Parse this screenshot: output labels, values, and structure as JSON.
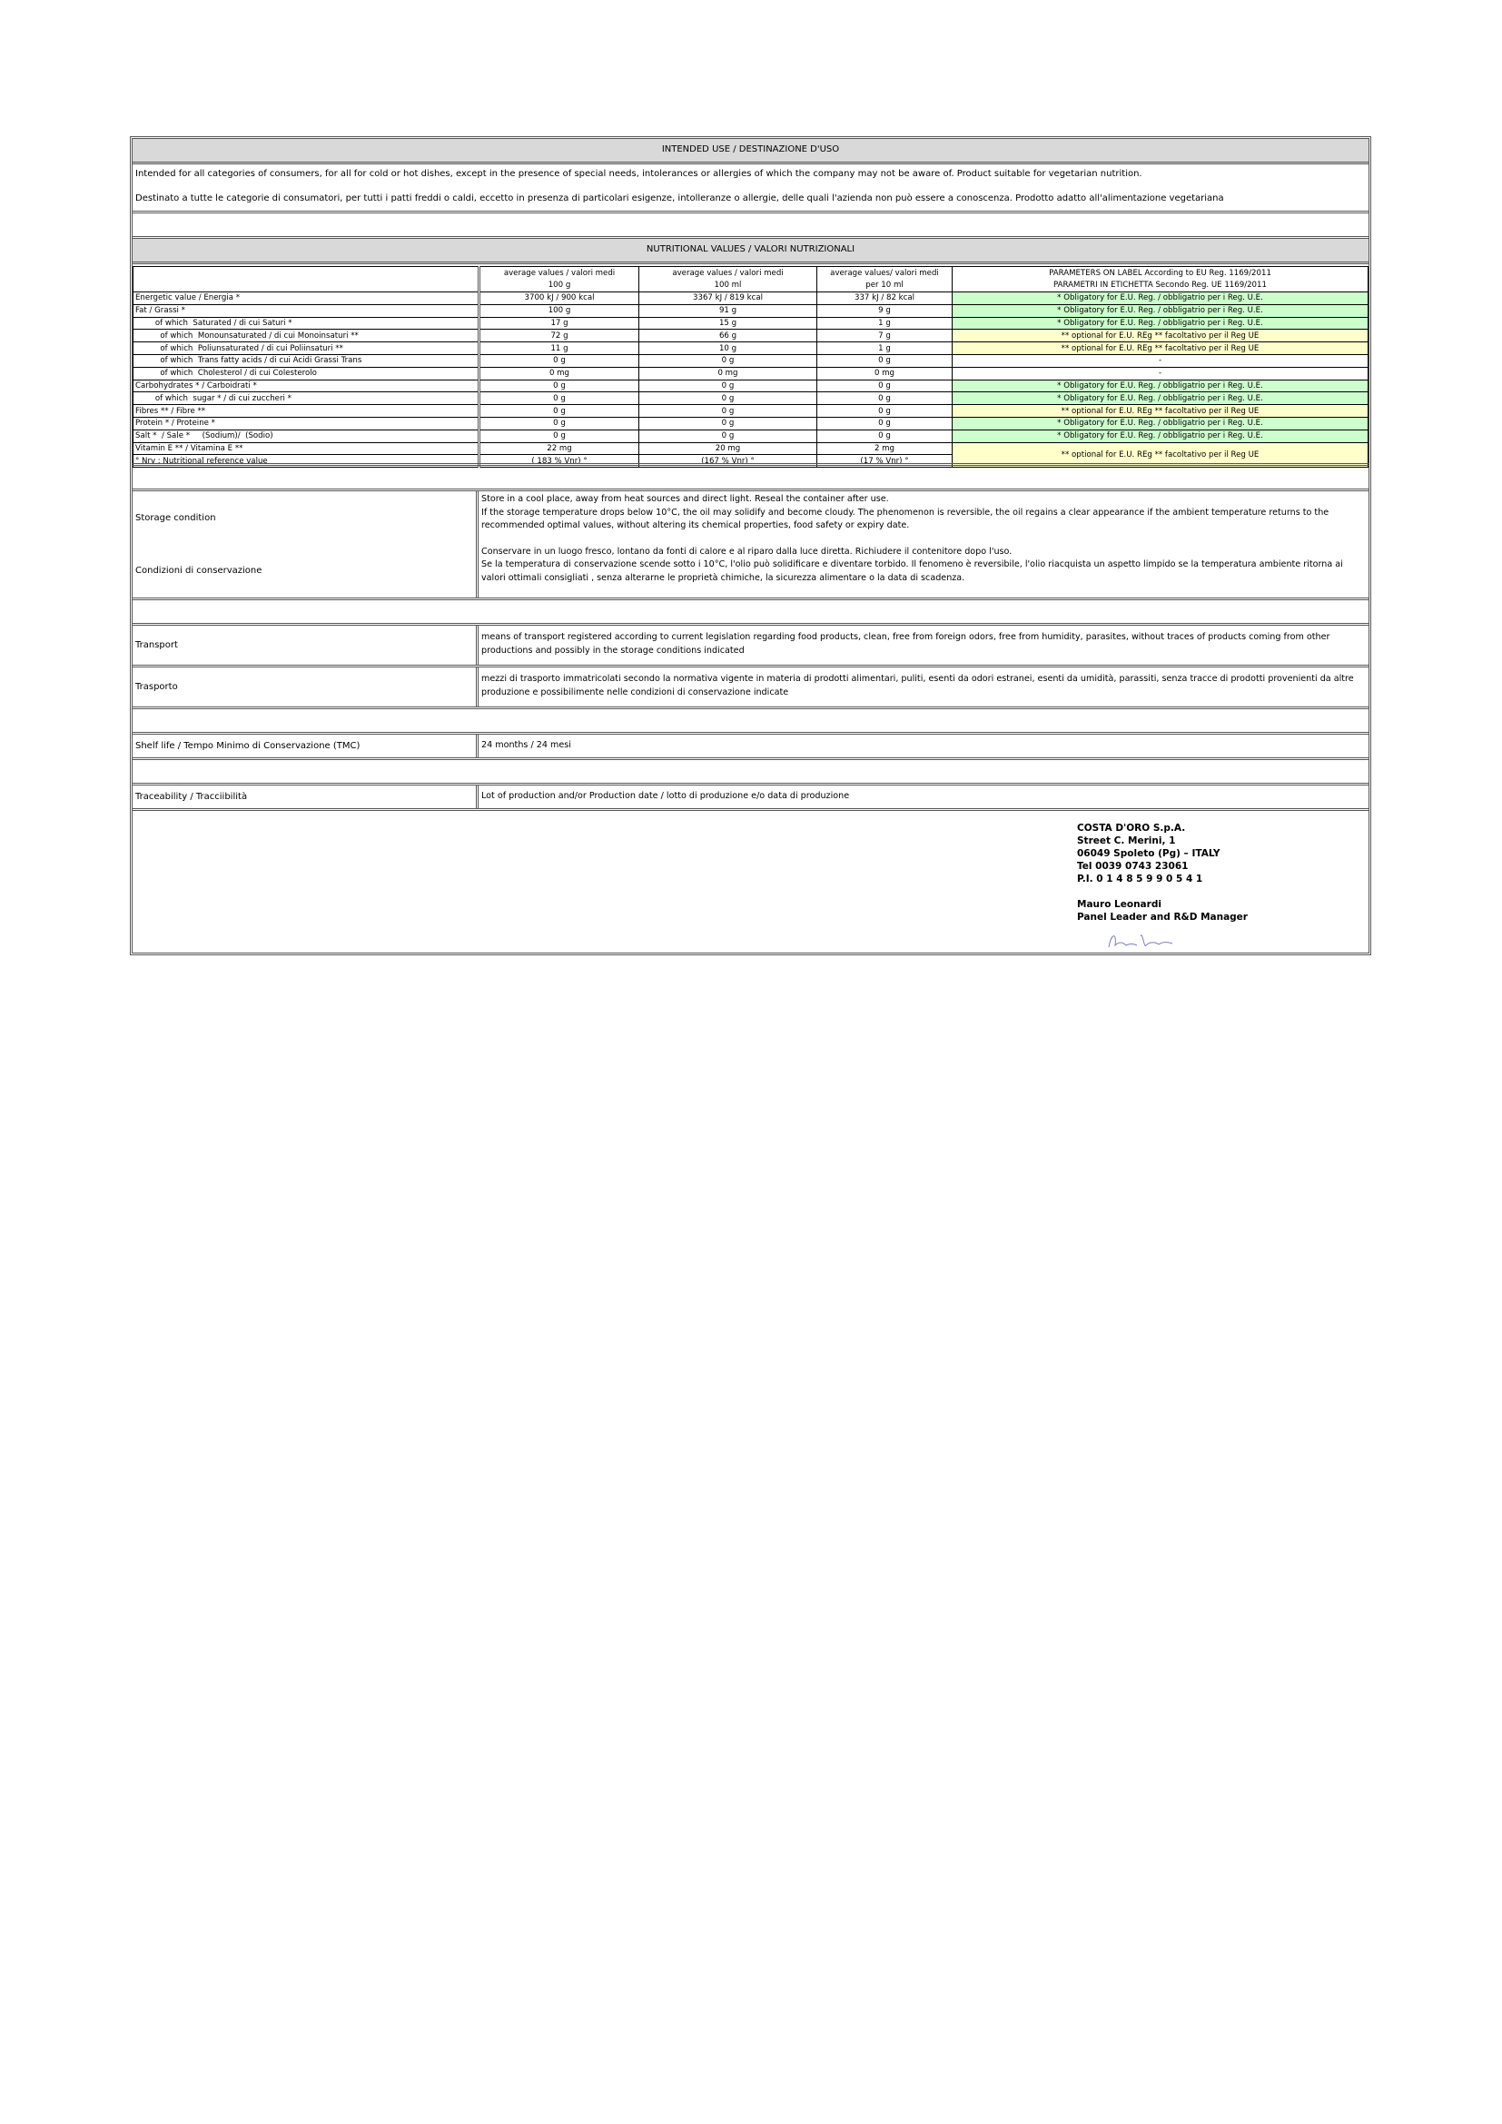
{
  "intended_use": {
    "title": "INTENDED USE / DESTINAZIONE D'USO",
    "text_en": "Intended for all categories of consumers, for all for cold or hot dishes,  except in the presence of special needs, intolerances or allergies of which the company may not be aware of. Product suitable for vegetarian nutrition.",
    "text_it": "Destinato a tutte le categorie di consumatori, per tutti i patti freddi o caldi, eccetto in presenza di particolari esigenze,  intolleranze o allergie,  delle quali l'azienda non può essere a conoscenza. Prodotto adatto all'alimentazione vegetariana"
  },
  "nutrition": {
    "title": "NUTRITIONAL VALUES  / VALORI NUTRIZIONALI",
    "headers": [
      {
        "l1": "average values / valori medi",
        "l2": "100 g"
      },
      {
        "l1": "average values / valori medi",
        "l2": "100 ml"
      },
      {
        "l1": "average values/ valori medi",
        "l2": "per 10 ml"
      },
      {
        "l1": "PARAMETERS ON LABEL According to EU Reg. 1169/2011",
        "l2": "PARAMETRI  IN ETICHETTA Secondo Reg. UE 1169/2011"
      }
    ],
    "rows": [
      {
        "label": "Energetic value / Energia *",
        "v1": "3700 kJ / 900 kcal",
        "v2": "3367 kJ / 819 kcal",
        "v3": "337 kJ / 82 kcal",
        "param": "* Obligatory for E.U. Reg. / obbligatrio per i Reg. U.E.",
        "type": "g"
      },
      {
        "label": "Fat / Grassi *",
        "v1": "100 g",
        "v2": "91 g",
        "v3": "9 g",
        "param": "* Obligatory for E.U. Reg. / obbligatrio per i Reg. U.E.",
        "type": "g"
      },
      {
        "label": "        of which  Saturated / di cui Saturi *",
        "v1": "17 g",
        "v2": "15 g",
        "v3": "1 g",
        "param": "* Obligatory for E.U. Reg. / obbligatrio per i Reg. U.E.",
        "type": "g"
      },
      {
        "label": "          of which  Monounsaturated / di cui Monoinsaturi **",
        "v1": "72 g",
        "v2": "66 g",
        "v3": "7 g",
        "param": "** optional for E.U. REg  ** facoltativo per il Reg UE",
        "type": "y"
      },
      {
        "label": "          of which  Poliunsaturated / di cui Poliinsaturi **",
        "v1": "11 g",
        "v2": "10 g",
        "v3": "1 g",
        "param": "** optional for E.U. REg  ** facoltativo per il Reg UE",
        "type": "y"
      },
      {
        "label": "          of which  Trans fatty acids / di cui Acidi Grassi Trans",
        "v1": "0 g",
        "v2": "0 g",
        "v3": "0 g",
        "param": "-",
        "type": "w"
      },
      {
        "label": "          of which  Cholesterol / di cui Colesterolo",
        "v1": "0 mg",
        "v2": "0 mg",
        "v3": "0 mg",
        "param": "-",
        "type": "w"
      },
      {
        "label": "Carbohydrates * / Carboidrati *",
        "v1": "0 g",
        "v2": "0 g",
        "v3": "0 g",
        "param": "* Obligatory for E.U. Reg. / obbligatrio per i Reg. U.E.",
        "type": "g"
      },
      {
        "label": "        of which  sugar * / di cui zuccheri *",
        "v1": "0 g",
        "v2": "0 g",
        "v3": "0 g",
        "param": "* Obligatory for E.U. Reg. / obbligatrio per i Reg. U.E.",
        "type": "g"
      },
      {
        "label": "Fibres ** / Fibre **",
        "v1": "0 g",
        "v2": "0 g",
        "v3": "0 g",
        "param": "** optional for E.U. REg  ** facoltativo per il Reg UE",
        "type": "y"
      },
      {
        "label": "Protein * / Proteine *",
        "v1": "0 g",
        "v2": "0 g",
        "v3": "0 g",
        "param": "* Obligatory for E.U. Reg. / obbligatrio per i Reg. U.E.",
        "type": "g"
      },
      {
        "label": "Salt *  / Sale *     (Sodium)/  (Sodio)",
        "v1": "0 g",
        "v2": "0 g",
        "v3": "0 g",
        "param": "* Obligatory for E.U. Reg. / obbligatrio per i Reg. U.E.",
        "type": "g"
      }
    ],
    "vitamin": {
      "label": "Vitamin E ** / Vitamina E **",
      "v1": "22 mg",
      "v2": "20 mg",
      "v3": "2 mg",
      "param": "** optional for E.U. REg  ** facoltativo per il Reg UE"
    },
    "nrv": {
      "label": "° Nrv : Nutritional reference value",
      "v1": "( 183 % Vnr) °",
      "v2": "(167 % Vnr) °",
      "v3": "(17 % Vnr) °"
    },
    "colors": {
      "obligatory": "#ccffcc",
      "optional": "#ffffcc",
      "header": "#d9d9d9"
    }
  },
  "storage": {
    "label_en": "Storage condition",
    "label_it": "Condizioni di conservazione",
    "en1": "Store in a cool place, away from heat sources and direct light. Reseal the container after use.",
    "en2": "If the storage temperature drops below 10°C, the oil may solidify and become cloudy. The phenomenon is reversible, the oil regains a clear appearance if the ambient temperature returns to the recommended optimal values, without altering its chemical properties, food safety or expiry date.",
    "it1": "Conservare in un luogo fresco, lontano da fonti di calore e al riparo dalla luce diretta. Richiudere il contenitore dopo l'uso.",
    "it2": "Se la temperatura di conservazione scende sotto i 10°C, l'olio può solidificare e diventare torbido. Il fenomeno è reversibile, l'olio riacquista un aspetto limpido se la temperatura ambiente ritorna ai valori ottimali consigliati , senza alterarne le proprietà chimiche, la sicurezza alimentare o la data di scadenza."
  },
  "transport": {
    "label_en": "Transport",
    "text_en": "means of transport registered according to current legislation regarding food products, clean, free from foreign odors, free from humidity, parasites, without traces of products coming from other productions and possibly in the storage conditions indicated",
    "label_it": "Trasporto",
    "text_it": "mezzi di trasporto immatricolati secondo la normativa vigente in materia di prodotti alimentari, puliti, esenti da odori estranei, esenti da umidità, parassiti, senza tracce di prodotti provenienti da altre produzione e possibilimente nelle condizioni di conservazione indicate"
  },
  "shelf_life": {
    "label": "Shelf life / Tempo Minimo di Conservazione (TMC)",
    "value": "24 months  / 24 mesi"
  },
  "traceability": {
    "label": "Traceability / Tracciibilità",
    "value": "Lot of production and/or  Production date / lotto di produzione e/o data di produzione"
  },
  "company": {
    "lines": [
      "COSTA D'ORO S.p.A.",
      "Street  C. Merini, 1",
      "06049 Spoleto (Pg) – ITALY",
      "Tel  0039 0743 23061",
      "P.I. 0 1 4 8 5 9 9 0 5 4 1"
    ],
    "signer": "Mauro Leonardi",
    "role": "Panel Leader  and  R&D  Manager",
    "signature": "Mauro Leonardi"
  }
}
